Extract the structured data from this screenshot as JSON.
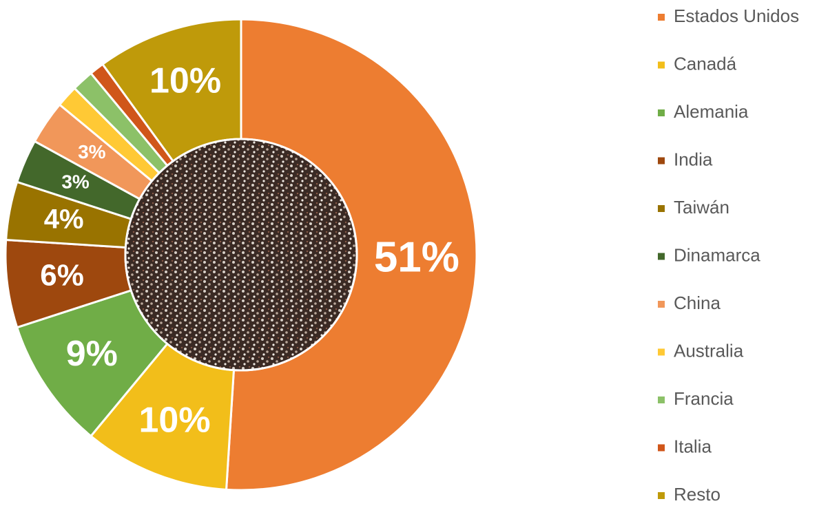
{
  "chart_data": {
    "type": "donut",
    "categories": [
      "Estados Unidos",
      "Canadá",
      "Alemania",
      "India",
      "Taiwán",
      "Dinamarca",
      "China",
      "Australia",
      "Francia",
      "Italia",
      "Resto"
    ],
    "values": [
      51,
      10,
      9,
      6,
      4,
      3,
      3,
      1.5,
      1.5,
      1,
      10
    ],
    "value_labels": [
      "51%",
      "10%",
      "9%",
      "6%",
      "4%",
      "3%",
      "3%",
      null,
      null,
      null,
      "10%"
    ],
    "colors": [
      "#ED7D31",
      "#F2BE1A",
      "#70AD47",
      "#9E480E",
      "#997300",
      "#43682B",
      "#F1975A",
      "#FFC935",
      "#8CC168",
      "#D0561A",
      "#BF9A0A"
    ]
  }
}
